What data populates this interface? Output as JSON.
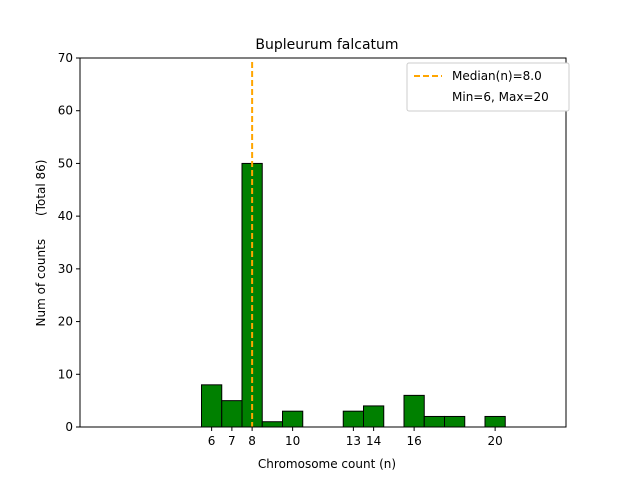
{
  "chart_data": {
    "type": "bar",
    "title": "Bupleurum falcatum",
    "xlabel": "Chromosome count (n)",
    "ylabel": "Num of counts      (Total 86)",
    "xlim": [
      -0.5,
      23.5
    ],
    "ylim": [
      0,
      70
    ],
    "yticks": [
      0,
      10,
      20,
      30,
      40,
      50,
      60,
      70
    ],
    "xticks": [
      6,
      7,
      8,
      10,
      13,
      14,
      16,
      20
    ],
    "bins": [
      {
        "x": 6,
        "count": 8
      },
      {
        "x": 7,
        "count": 5
      },
      {
        "x": 8,
        "count": 50
      },
      {
        "x": 9,
        "count": 1
      },
      {
        "x": 10,
        "count": 3
      },
      {
        "x": 13,
        "count": 3
      },
      {
        "x": 14,
        "count": 4
      },
      {
        "x": 16,
        "count": 6
      },
      {
        "x": 17,
        "count": 2
      },
      {
        "x": 18,
        "count": 2
      },
      {
        "x": 20,
        "count": 2
      }
    ],
    "bar_color": "#008000",
    "bar_edge_color": "#000000",
    "median": 8.0,
    "median_color": "#FFA500",
    "legend": {
      "position": "top-right",
      "entries": [
        "Median(n)=8.0",
        "Min=6, Max=20"
      ]
    }
  }
}
